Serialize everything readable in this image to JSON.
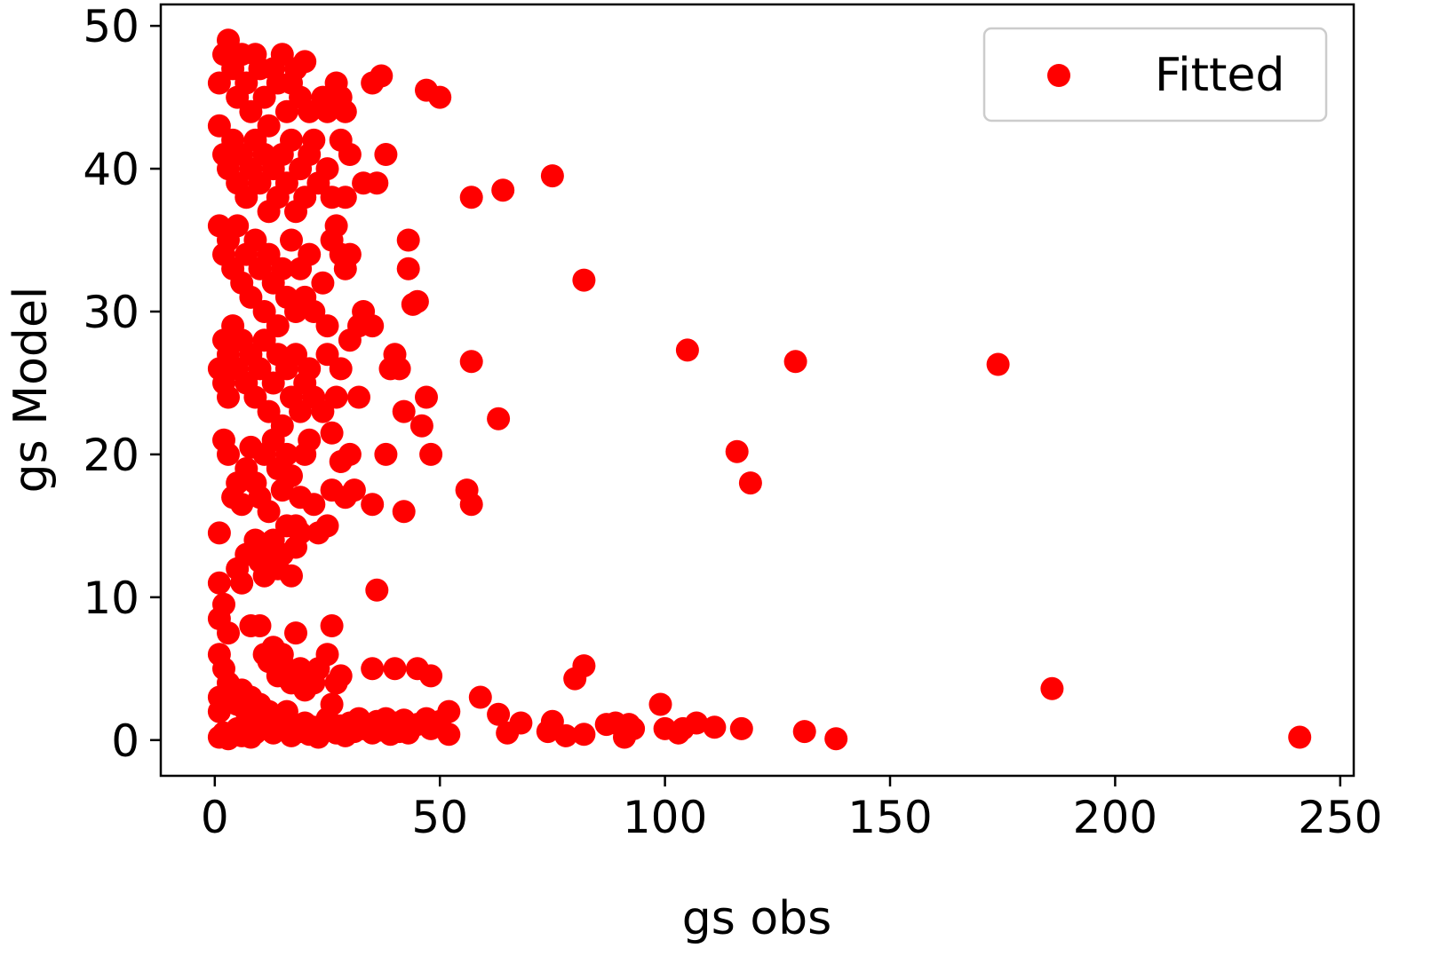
{
  "chart_data": {
    "type": "scatter",
    "xlabel": "gs obs",
    "ylabel": "gs Model",
    "xlim": [
      -12,
      253
    ],
    "ylim": [
      -2.5,
      51.5
    ],
    "xticks": [
      0,
      50,
      100,
      150,
      200,
      250
    ],
    "yticks": [
      0,
      10,
      20,
      30,
      40,
      50
    ],
    "xtick_labels": [
      "0",
      "50",
      "100",
      "150",
      "200",
      "250"
    ],
    "ytick_labels": [
      "0",
      "10",
      "20",
      "30",
      "40",
      "50"
    ],
    "grid": false,
    "legend_position": "top-right",
    "series": [
      {
        "name": "Fitted",
        "color": "#ff0000",
        "points": [
          [
            1,
            46
          ],
          [
            2,
            48
          ],
          [
            3,
            49
          ],
          [
            4,
            47
          ],
          [
            5,
            45
          ],
          [
            6,
            48
          ],
          [
            7,
            46
          ],
          [
            8,
            44
          ],
          [
            9,
            48
          ],
          [
            10,
            47
          ],
          [
            11,
            45
          ],
          [
            12,
            43
          ],
          [
            13,
            47
          ],
          [
            14,
            46
          ],
          [
            15,
            48
          ],
          [
            16,
            44
          ],
          [
            17,
            46
          ],
          [
            18,
            47
          ],
          [
            19,
            45
          ],
          [
            20,
            47.5
          ],
          [
            21,
            44
          ],
          [
            22,
            42
          ],
          [
            24,
            45
          ],
          [
            25,
            44
          ],
          [
            27,
            46
          ],
          [
            28,
            45
          ],
          [
            29,
            44
          ],
          [
            1,
            43
          ],
          [
            2,
            41
          ],
          [
            3,
            40
          ],
          [
            4,
            42
          ],
          [
            5,
            39
          ],
          [
            6,
            41
          ],
          [
            7,
            38
          ],
          [
            8,
            40
          ],
          [
            9,
            42
          ],
          [
            10,
            39
          ],
          [
            11,
            41
          ],
          [
            12,
            37
          ],
          [
            13,
            40
          ],
          [
            14,
            38
          ],
          [
            15,
            41
          ],
          [
            16,
            39
          ],
          [
            17,
            42
          ],
          [
            18,
            37
          ],
          [
            19,
            40
          ],
          [
            20,
            38
          ],
          [
            21,
            41
          ],
          [
            23,
            39
          ],
          [
            25,
            40
          ],
          [
            26,
            38
          ],
          [
            28,
            42
          ],
          [
            29,
            38
          ],
          [
            30,
            41
          ],
          [
            1,
            36
          ],
          [
            2,
            34
          ],
          [
            3,
            35
          ],
          [
            4,
            33
          ],
          [
            5,
            36
          ],
          [
            6,
            32
          ],
          [
            7,
            34
          ],
          [
            8,
            31
          ],
          [
            9,
            35
          ],
          [
            10,
            33
          ],
          [
            11,
            30
          ],
          [
            12,
            34
          ],
          [
            13,
            32
          ],
          [
            14,
            29
          ],
          [
            15,
            33
          ],
          [
            16,
            31
          ],
          [
            17,
            35
          ],
          [
            18,
            30
          ],
          [
            19,
            33
          ],
          [
            20,
            31
          ],
          [
            21,
            34
          ],
          [
            22,
            30
          ],
          [
            24,
            32
          ],
          [
            25,
            29
          ],
          [
            26,
            35
          ],
          [
            27,
            36
          ],
          [
            28,
            34
          ],
          [
            29,
            33
          ],
          [
            30,
            34
          ],
          [
            2,
            28
          ],
          [
            3,
            27
          ],
          [
            4,
            29
          ],
          [
            5,
            26
          ],
          [
            6,
            28
          ],
          [
            7,
            25
          ],
          [
            8,
            27
          ],
          [
            9,
            24
          ],
          [
            10,
            26
          ],
          [
            11,
            28
          ],
          [
            12,
            23
          ],
          [
            13,
            25
          ],
          [
            14,
            27
          ],
          [
            15,
            22
          ],
          [
            16,
            26
          ],
          [
            17,
            24
          ],
          [
            18,
            27
          ],
          [
            19,
            23
          ],
          [
            20,
            25
          ],
          [
            21,
            26
          ],
          [
            22,
            24
          ],
          [
            24,
            23
          ],
          [
            25,
            27
          ],
          [
            26,
            21.5
          ],
          [
            27,
            24
          ],
          [
            28,
            26
          ],
          [
            30,
            28
          ],
          [
            1,
            26
          ],
          [
            2,
            25
          ],
          [
            3,
            24
          ],
          [
            2,
            21
          ],
          [
            3,
            20
          ],
          [
            4,
            17
          ],
          [
            5,
            18
          ],
          [
            6,
            16.5
          ],
          [
            7,
            19
          ],
          [
            8,
            20.5
          ],
          [
            9,
            18
          ],
          [
            10,
            17
          ],
          [
            11,
            20
          ],
          [
            12,
            16
          ],
          [
            13,
            21
          ],
          [
            14,
            19
          ],
          [
            15,
            17.5
          ],
          [
            16,
            20
          ],
          [
            17,
            18.5
          ],
          [
            18,
            15
          ],
          [
            19,
            17
          ],
          [
            20,
            20
          ],
          [
            21,
            21
          ],
          [
            22,
            16.5
          ],
          [
            23,
            14.5
          ],
          [
            25,
            15
          ],
          [
            26,
            17.5
          ],
          [
            28,
            19.5
          ],
          [
            29,
            17
          ],
          [
            30,
            20
          ],
          [
            31,
            17.5
          ],
          [
            1,
            14.5
          ],
          [
            5,
            12
          ],
          [
            6,
            11
          ],
          [
            7,
            13
          ],
          [
            9,
            14
          ],
          [
            10,
            12.5
          ],
          [
            11,
            11.5
          ],
          [
            12,
            13
          ],
          [
            13,
            14
          ],
          [
            14,
            12
          ],
          [
            15,
            13
          ],
          [
            16,
            15
          ],
          [
            17,
            11.5
          ],
          [
            18,
            13.5
          ],
          [
            19,
            14.5
          ],
          [
            1,
            11
          ],
          [
            1,
            8.5
          ],
          [
            2,
            9.5
          ],
          [
            3,
            7.5
          ],
          [
            8,
            8
          ],
          [
            10,
            8
          ],
          [
            11,
            6
          ],
          [
            12,
            5.5
          ],
          [
            13,
            6.5
          ],
          [
            14,
            4.5
          ],
          [
            15,
            6
          ],
          [
            16,
            5
          ],
          [
            17,
            4
          ],
          [
            18,
            7.5
          ],
          [
            19,
            5
          ],
          [
            20,
            3.5
          ],
          [
            22,
            4
          ],
          [
            23,
            5
          ],
          [
            25,
            6
          ],
          [
            26,
            8
          ],
          [
            27,
            4
          ],
          [
            28,
            4.5
          ],
          [
            1,
            6
          ],
          [
            2,
            5
          ],
          [
            3,
            4
          ],
          [
            4,
            3
          ],
          [
            5,
            2.5
          ],
          [
            6,
            3.5
          ],
          [
            7,
            2
          ],
          [
            8,
            3
          ],
          [
            9,
            1.5
          ],
          [
            10,
            2.5
          ],
          [
            11,
            1
          ],
          [
            12,
            2
          ],
          [
            13,
            0.5
          ],
          [
            14,
            1.5
          ],
          [
            15,
            0.8
          ],
          [
            16,
            2
          ],
          [
            17,
            0.3
          ],
          [
            18,
            1
          ],
          [
            19,
            0.6
          ],
          [
            20,
            1.2
          ],
          [
            21,
            0.4
          ],
          [
            22,
            0.9
          ],
          [
            23,
            0.2
          ],
          [
            24,
            0.7
          ],
          [
            25,
            1.5
          ],
          [
            26,
            2.5
          ],
          [
            27,
            0.5
          ],
          [
            28,
            1
          ],
          [
            29,
            0.3
          ],
          [
            30,
            1.2
          ],
          [
            31,
            0.6
          ],
          [
            32,
            1.5
          ],
          [
            33,
            0.8
          ],
          [
            34,
            1
          ],
          [
            35,
            0.5
          ],
          [
            36,
            1.3
          ],
          [
            37,
            0.7
          ],
          [
            38,
            1.5
          ],
          [
            39,
            0.4
          ],
          [
            40,
            1.2
          ],
          [
            41,
            0.6
          ],
          [
            42,
            1.4
          ],
          [
            43,
            0.5
          ],
          [
            45,
            1.1
          ],
          [
            47,
            1.5
          ],
          [
            48,
            0.8
          ],
          [
            50,
            1.3
          ],
          [
            52,
            0.4
          ],
          [
            52,
            2
          ],
          [
            1,
            0.2
          ],
          [
            2,
            0.5
          ],
          [
            3,
            0.1
          ],
          [
            4,
            0.4
          ],
          [
            5,
            0.8
          ],
          [
            6,
            0.3
          ],
          [
            7,
            0.6
          ],
          [
            8,
            0.2
          ],
          [
            9,
            0.5
          ],
          [
            1,
            2
          ],
          [
            1,
            3
          ],
          [
            33,
            39
          ],
          [
            35,
            46
          ],
          [
            36,
            39
          ],
          [
            37,
            46.5
          ],
          [
            38,
            41
          ],
          [
            47,
            45.5
          ],
          [
            50,
            45
          ],
          [
            32,
            29
          ],
          [
            33,
            30
          ],
          [
            35,
            29
          ],
          [
            35,
            16.5
          ],
          [
            36,
            10.5
          ],
          [
            35,
            5
          ],
          [
            40,
            5
          ],
          [
            45,
            5
          ],
          [
            48,
            4.5
          ],
          [
            39,
            26
          ],
          [
            40,
            27
          ],
          [
            41,
            26
          ],
          [
            42,
            23
          ],
          [
            42,
            16
          ],
          [
            43,
            35
          ],
          [
            43,
            33
          ],
          [
            44,
            30.5
          ],
          [
            45,
            30.7
          ],
          [
            46,
            22
          ],
          [
            47,
            24
          ],
          [
            48,
            20
          ],
          [
            38,
            20
          ],
          [
            32,
            24
          ],
          [
            57,
            38
          ],
          [
            64,
            38.5
          ],
          [
            75,
            39.5
          ],
          [
            82,
            32.2
          ],
          [
            57,
            26.5
          ],
          [
            63,
            22.5
          ],
          [
            56,
            17.5
          ],
          [
            57,
            16.5
          ],
          [
            59,
            3
          ],
          [
            63,
            1.8
          ],
          [
            65,
            0.5
          ],
          [
            68,
            1.2
          ],
          [
            74,
            0.6
          ],
          [
            75,
            1.3
          ],
          [
            78,
            0.3
          ],
          [
            82,
            0.4
          ],
          [
            80,
            4.3
          ],
          [
            82,
            5.2
          ],
          [
            87,
            1.1
          ],
          [
            89,
            1.2
          ],
          [
            91,
            0.2
          ],
          [
            92,
            1.1
          ],
          [
            93,
            0.8
          ],
          [
            99,
            2.5
          ],
          [
            100,
            0.8
          ],
          [
            103,
            0.5
          ],
          [
            104,
            0.8
          ],
          [
            107,
            1.2
          ],
          [
            111,
            0.9
          ],
          [
            117,
            0.8
          ],
          [
            105,
            27.3
          ],
          [
            116,
            20.2
          ],
          [
            119,
            18
          ],
          [
            129,
            26.5
          ],
          [
            131,
            0.6
          ],
          [
            138,
            0.1
          ],
          [
            174,
            26.3
          ],
          [
            186,
            3.6
          ],
          [
            241,
            0.2
          ]
        ]
      }
    ]
  }
}
